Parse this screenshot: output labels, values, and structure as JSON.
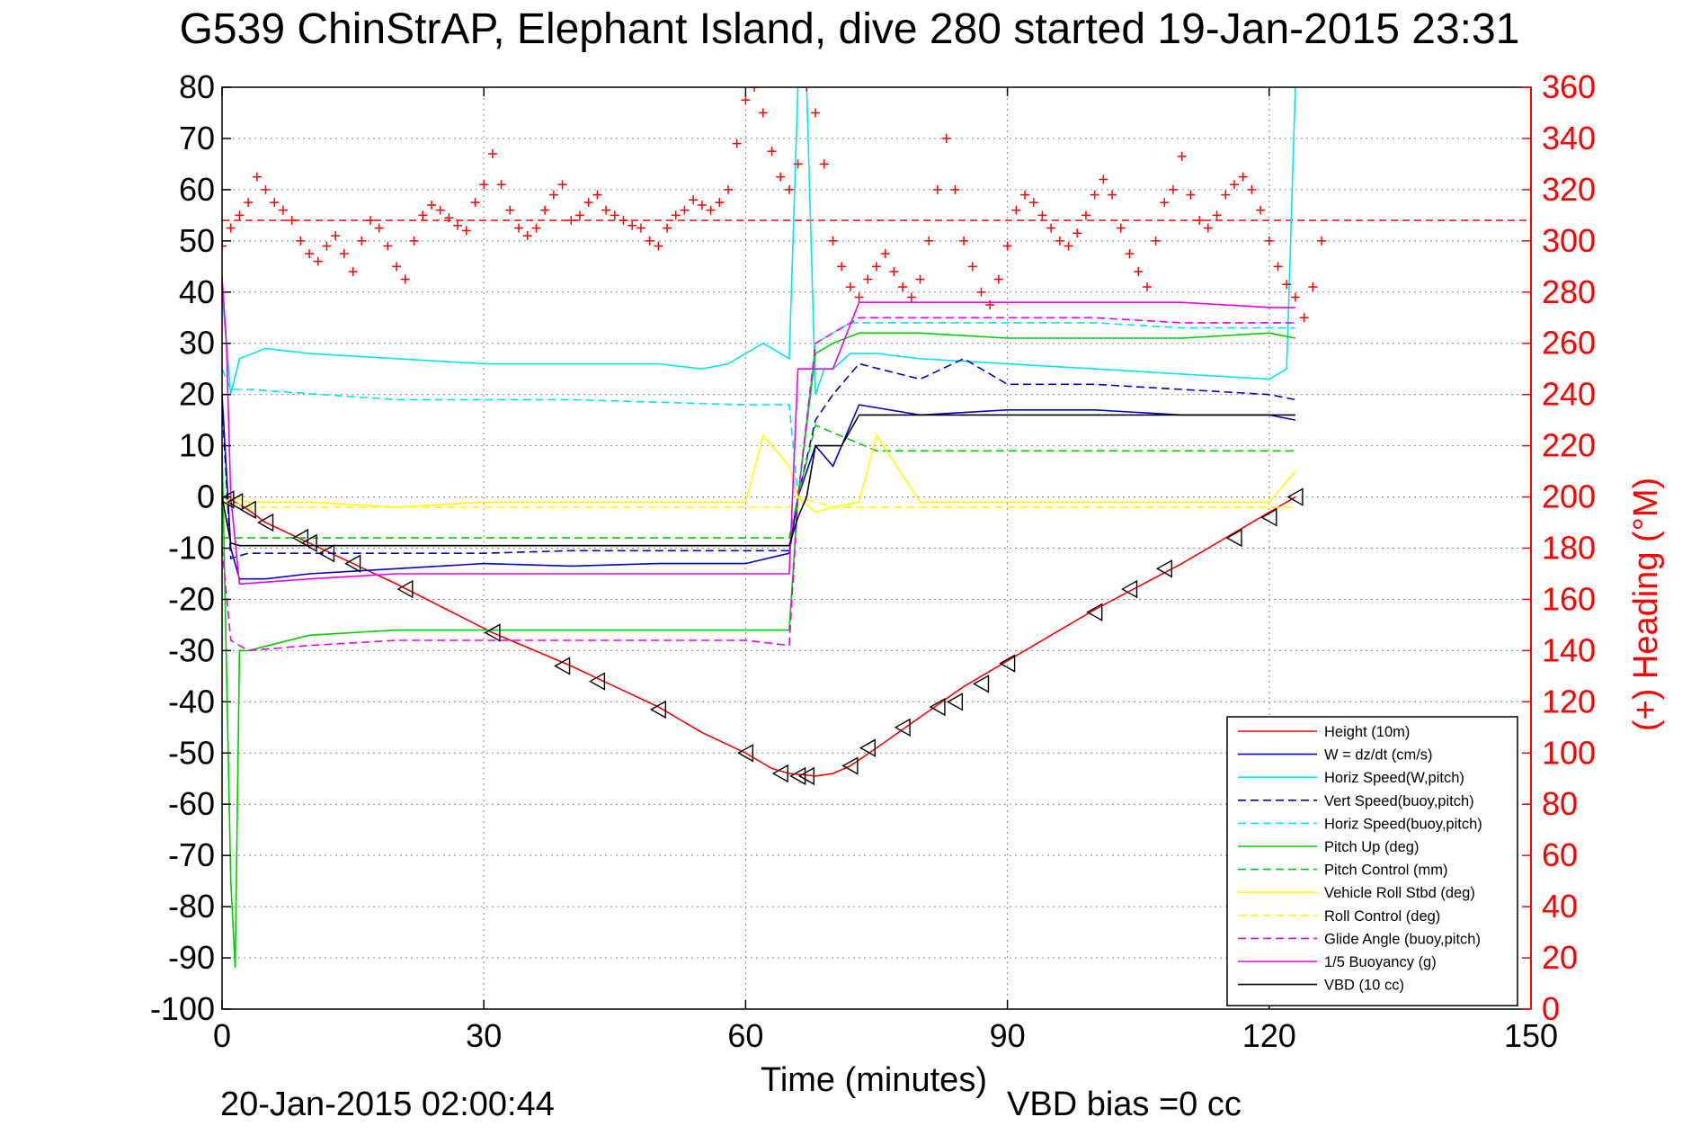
{
  "chart_data": {
    "type": "line",
    "title": "G539 ChinStrAP, Elephant Island, dive 280 started 19-Jan-2015 23:31",
    "xlabel": "Time (minutes)",
    "ylabel": "",
    "ylabel_right": "(+) Heading (°M)",
    "xlim": [
      0,
      150
    ],
    "ylim": [
      -100,
      80
    ],
    "ylim_right": [
      0,
      360
    ],
    "x_ticks": [
      0,
      30,
      60,
      90,
      120,
      150
    ],
    "y_ticks": [
      -100,
      -90,
      -80,
      -70,
      -60,
      -50,
      -40,
      -30,
      -20,
      -10,
      0,
      10,
      20,
      30,
      40,
      50,
      60,
      70,
      80
    ],
    "y_ticks_right": [
      0,
      20,
      40,
      60,
      80,
      100,
      120,
      140,
      160,
      180,
      200,
      220,
      240,
      260,
      280,
      300,
      320,
      340,
      360
    ],
    "grid": true,
    "legend_position": "bottom-right",
    "footer_left": "20-Jan-2015 02:00:44",
    "footer_right": "VBD bias =0 cc",
    "colors": {
      "red": "#ff0000",
      "blue": "#0000cc",
      "cyan": "#00e5ee",
      "green": "#00cc00",
      "yellow": "#ffff00",
      "magenta": "#ee00ee",
      "black": "#000000"
    },
    "heading_series": {
      "name": "",
      "axis": "right",
      "color": "#ff0000",
      "marker": "+",
      "points": [
        [
          0,
          298
        ],
        [
          1,
          305
        ],
        [
          2,
          310
        ],
        [
          3,
          315
        ],
        [
          4,
          325
        ],
        [
          5,
          320
        ],
        [
          6,
          315
        ],
        [
          7,
          312
        ],
        [
          8,
          308
        ],
        [
          9,
          300
        ],
        [
          10,
          295
        ],
        [
          11,
          292
        ],
        [
          12,
          298
        ],
        [
          13,
          302
        ],
        [
          14,
          295
        ],
        [
          15,
          288
        ],
        [
          16,
          300
        ],
        [
          17,
          308
        ],
        [
          18,
          305
        ],
        [
          19,
          298
        ],
        [
          20,
          290
        ],
        [
          21,
          285
        ],
        [
          22,
          300
        ],
        [
          23,
          310
        ],
        [
          24,
          314
        ],
        [
          25,
          312
        ],
        [
          26,
          309
        ],
        [
          27,
          306
        ],
        [
          28,
          304
        ],
        [
          29,
          315
        ],
        [
          30,
          322
        ],
        [
          31,
          334
        ],
        [
          32,
          322
        ],
        [
          33,
          312
        ],
        [
          34,
          305
        ],
        [
          35,
          302
        ],
        [
          36,
          305
        ],
        [
          37,
          312
        ],
        [
          38,
          318
        ],
        [
          39,
          322
        ],
        [
          40,
          308
        ],
        [
          41,
          310
        ],
        [
          42,
          315
        ],
        [
          43,
          318
        ],
        [
          44,
          312
        ],
        [
          45,
          310
        ],
        [
          46,
          308
        ],
        [
          47,
          306
        ],
        [
          48,
          305
        ],
        [
          49,
          300
        ],
        [
          50,
          298
        ],
        [
          51,
          305
        ],
        [
          52,
          310
        ],
        [
          53,
          312
        ],
        [
          54,
          316
        ],
        [
          55,
          314
        ],
        [
          56,
          312
        ],
        [
          57,
          315
        ],
        [
          58,
          320
        ],
        [
          59,
          338
        ],
        [
          60,
          355
        ],
        [
          61,
          360
        ],
        [
          62,
          350
        ],
        [
          63,
          335
        ],
        [
          64,
          325
        ],
        [
          65,
          320
        ],
        [
          66,
          330
        ],
        [
          67,
          360
        ],
        [
          68,
          350
        ],
        [
          69,
          330
        ],
        [
          70,
          300
        ],
        [
          71,
          290
        ],
        [
          72,
          282
        ],
        [
          73,
          278
        ],
        [
          74,
          285
        ],
        [
          75,
          290
        ],
        [
          76,
          295
        ],
        [
          77,
          288
        ],
        [
          78,
          282
        ],
        [
          79,
          278
        ],
        [
          80,
          285
        ],
        [
          81,
          300
        ],
        [
          82,
          320
        ],
        [
          83,
          340
        ],
        [
          84,
          320
        ],
        [
          85,
          300
        ],
        [
          86,
          290
        ],
        [
          87,
          280
        ],
        [
          88,
          275
        ],
        [
          89,
          285
        ],
        [
          90,
          298
        ],
        [
          91,
          312
        ],
        [
          92,
          318
        ],
        [
          93,
          315
        ],
        [
          94,
          310
        ],
        [
          95,
          305
        ],
        [
          96,
          300
        ],
        [
          97,
          298
        ],
        [
          98,
          303
        ],
        [
          99,
          310
        ],
        [
          100,
          318
        ],
        [
          101,
          324
        ],
        [
          102,
          318
        ],
        [
          103,
          305
        ],
        [
          104,
          295
        ],
        [
          105,
          288
        ],
        [
          106,
          282
        ],
        [
          107,
          300
        ],
        [
          108,
          315
        ],
        [
          109,
          320
        ],
        [
          110,
          333
        ],
        [
          111,
          318
        ],
        [
          112,
          308
        ],
        [
          113,
          305
        ],
        [
          114,
          310
        ],
        [
          115,
          318
        ],
        [
          116,
          322
        ],
        [
          117,
          325
        ],
        [
          118,
          320
        ],
        [
          119,
          312
        ],
        [
          120,
          300
        ],
        [
          121,
          290
        ],
        [
          122,
          283
        ],
        [
          123,
          278
        ],
        [
          124,
          270
        ],
        [
          125,
          282
        ],
        [
          126,
          300
        ]
      ]
    },
    "series": [
      {
        "name": "Height (10m)",
        "color": "#ff0000",
        "style": "solid",
        "x": [
          0,
          1,
          2,
          3,
          5,
          10,
          20,
          31,
          40,
          45,
          50,
          55,
          60,
          63,
          65,
          67,
          68,
          70,
          72,
          75,
          80,
          85,
          90,
          95,
          100,
          105,
          110,
          115,
          120,
          122,
          123
        ],
        "y": [
          0,
          -0.5,
          -1.5,
          -2.5,
          -5,
          -9,
          -17,
          -26.5,
          -33,
          -37,
          -41,
          -46,
          -50,
          -53,
          -54,
          -54.3,
          -54.5,
          -54,
          -52.5,
          -49,
          -43,
          -37,
          -32,
          -27,
          -22,
          -17.5,
          -13,
          -8,
          -3,
          -1,
          0
        ]
      },
      {
        "name": "W = dz/dt (cm/s)",
        "color": "#0000cc",
        "style": "solid",
        "x": [
          0,
          1,
          2,
          5,
          10,
          20,
          30,
          40,
          50,
          60,
          65,
          66,
          68,
          70,
          73,
          80,
          90,
          100,
          110,
          120,
          123
        ],
        "y": [
          20,
          -10,
          -16,
          -16,
          -15,
          -14,
          -13,
          -13.5,
          -13,
          -13,
          -11,
          0,
          10,
          6,
          18,
          16,
          17,
          17,
          16,
          16,
          15
        ]
      },
      {
        "name": "Horiz Speed(W,pitch)",
        "color": "#00e5ee",
        "style": "solid",
        "x": [
          0,
          1,
          2,
          5,
          10,
          20,
          30,
          40,
          50,
          55,
          58,
          60,
          62,
          64,
          65,
          66,
          67,
          68,
          69,
          70,
          72,
          75,
          80,
          90,
          100,
          110,
          120,
          122,
          123
        ],
        "y": [
          40,
          20,
          27,
          29,
          28,
          27,
          26,
          26,
          26,
          25,
          26,
          28,
          30,
          28,
          27,
          80,
          80,
          20,
          25,
          25,
          28,
          28,
          27,
          26,
          25,
          24,
          23,
          25,
          80
        ]
      },
      {
        "name": "Vert Speed(buoy,pitch)",
        "color": "#0000cc",
        "style": "dashed",
        "x": [
          0,
          1,
          3,
          10,
          20,
          30,
          40,
          50,
          60,
          65,
          66,
          68,
          70,
          73,
          80,
          85,
          90,
          100,
          110,
          120,
          123
        ],
        "y": [
          18,
          -12,
          -11,
          -11,
          -11,
          -11,
          -10.5,
          -10.5,
          -10.5,
          -10.5,
          0,
          15,
          20,
          26,
          23,
          27,
          22,
          22,
          21,
          20,
          19
        ]
      },
      {
        "name": "Horiz Speed(buoy,pitch)",
        "color": "#00e5ee",
        "style": "dashed",
        "x": [
          0,
          1,
          3,
          20,
          40,
          60,
          65,
          66,
          68,
          70,
          72,
          80,
          90,
          100,
          110,
          120,
          123
        ],
        "y": [
          25,
          21,
          21,
          19,
          19,
          18,
          18,
          0,
          30,
          32,
          34,
          34,
          34,
          34,
          33,
          33,
          33
        ]
      },
      {
        "name": "Pitch Up (deg)",
        "color": "#00cc00",
        "style": "solid",
        "x": [
          0,
          1,
          1.5,
          2,
          3,
          10,
          20,
          30,
          40,
          50,
          60,
          65,
          66,
          68,
          70,
          73,
          80,
          90,
          100,
          110,
          120,
          123
        ],
        "y": [
          10,
          -75,
          -92,
          -30,
          -30,
          -27,
          -26,
          -26,
          -26,
          -26,
          -26,
          -26,
          0,
          28,
          30,
          32,
          32,
          31,
          31,
          31,
          32,
          31
        ]
      },
      {
        "name": "Pitch Control (mm)",
        "color": "#00cc00",
        "style": "dashed",
        "x": [
          0,
          3,
          20,
          40,
          60,
          65,
          66,
          68,
          75,
          90,
          110,
          123
        ],
        "y": [
          -8,
          -8,
          -8,
          -8,
          -8,
          -8,
          0,
          14,
          9,
          9,
          9,
          9
        ]
      },
      {
        "name": "Vehicle Roll Stbd (deg)",
        "color": "#ffff00",
        "style": "solid",
        "x": [
          0,
          1,
          3,
          10,
          20,
          30,
          40,
          50,
          60,
          62,
          64,
          65,
          66,
          68,
          70,
          73,
          75,
          80,
          90,
          100,
          110,
          120,
          123
        ],
        "y": [
          -2,
          0,
          -1,
          -1,
          -2,
          -1,
          -1,
          -1,
          -1,
          12,
          8,
          6,
          0,
          -3,
          -2,
          -1,
          12,
          -1,
          -1,
          -1,
          -1,
          -1,
          5
        ]
      },
      {
        "name": "Roll Control (deg)",
        "color": "#ffff00",
        "style": "dashed",
        "x": [
          0,
          1,
          3,
          5,
          10,
          20,
          30,
          40,
          50,
          60,
          65,
          66,
          70,
          75,
          90,
          110,
          123
        ],
        "y": [
          -2,
          -1,
          -2,
          -2,
          -2,
          -2,
          -2,
          -2,
          -2,
          -2,
          -2,
          0,
          -2,
          -2,
          -2,
          -2,
          -2
        ]
      },
      {
        "name": "Glide Angle (buoy,pitch)",
        "color": "#ee00ee",
        "style": "dashed",
        "x": [
          0,
          1,
          3,
          10,
          20,
          30,
          40,
          50,
          60,
          65,
          66,
          68,
          70,
          73,
          80,
          90,
          100,
          110,
          120,
          123
        ],
        "y": [
          -10,
          -28,
          -30,
          -29,
          -28,
          -28,
          -28,
          -28,
          -28,
          -29,
          0,
          30,
          32,
          35,
          35,
          35,
          35,
          34,
          34,
          34
        ]
      },
      {
        "name": "1/5 Buoyancy (g)",
        "color": "#ee00ee",
        "style": "solid",
        "x": [
          0,
          0.5,
          1,
          2,
          10,
          20,
          30,
          40,
          50,
          60,
          65,
          66,
          70,
          73,
          80,
          90,
          100,
          110,
          120,
          123
        ],
        "y": [
          43,
          30,
          0,
          -17,
          -16,
          -15,
          -15,
          -15,
          -15,
          -15,
          -15,
          25,
          25,
          38,
          38,
          38,
          38,
          38,
          37,
          37
        ]
      },
      {
        "name": "VBD (10 cc)",
        "color": "#000000",
        "style": "solid",
        "x": [
          0,
          1,
          2,
          10,
          20,
          30,
          40,
          50,
          60,
          65,
          66,
          67,
          68,
          70,
          71,
          72,
          73,
          80,
          90,
          100,
          110,
          120,
          123
        ],
        "y": [
          0,
          -9,
          -9.5,
          -9.5,
          -9.5,
          -9.5,
          -9.5,
          -9.5,
          -9.5,
          -9.5,
          -4,
          0,
          10,
          10,
          10,
          13,
          16,
          16,
          16,
          16,
          16,
          16,
          16
        ]
      }
    ],
    "triangle_markers": {
      "name": "",
      "color": "#000000",
      "points": [
        [
          0.5,
          -0.5
        ],
        [
          1.5,
          -1
        ],
        [
          3,
          -2.5
        ],
        [
          5,
          -5
        ],
        [
          9,
          -8
        ],
        [
          10,
          -9
        ],
        [
          12,
          -11
        ],
        [
          15,
          -13
        ],
        [
          21,
          -18
        ],
        [
          31,
          -26.5
        ],
        [
          39,
          -33
        ],
        [
          43,
          -36
        ],
        [
          50,
          -41.5
        ],
        [
          60,
          -50
        ],
        [
          64,
          -54
        ],
        [
          66,
          -54.5
        ],
        [
          67,
          -54.5
        ],
        [
          72,
          -52.5
        ],
        [
          74,
          -49
        ],
        [
          78,
          -45
        ],
        [
          82,
          -41
        ],
        [
          84,
          -40
        ],
        [
          87,
          -36.5
        ],
        [
          90,
          -32.5
        ],
        [
          100,
          -22.5
        ],
        [
          104,
          -18
        ],
        [
          108,
          -14
        ],
        [
          116,
          -8
        ],
        [
          120,
          -4
        ],
        [
          123,
          0
        ]
      ]
    },
    "heading_reference": {
      "name": "",
      "value": 308,
      "color": "#ff0000",
      "style": "dashed"
    }
  }
}
